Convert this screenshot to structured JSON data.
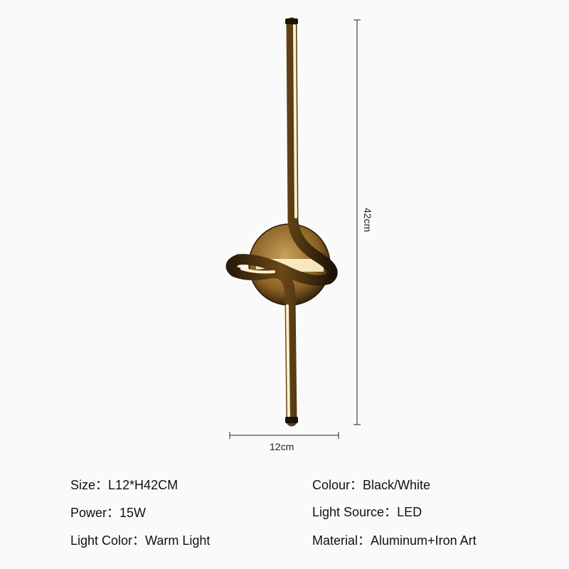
{
  "dimensions": {
    "height_label": "42cm",
    "width_label": "12cm"
  },
  "specs": [
    {
      "label": "Size：",
      "value": "L12*H42CM"
    },
    {
      "label": "Colour：",
      "value": "Black/White"
    },
    {
      "label": "Power：",
      "value": "15W"
    },
    {
      "label": "Light Source：",
      "value": "LED"
    },
    {
      "label": "Light Color：",
      "value": "Warm Light"
    },
    {
      "label": "Material：",
      "value": "Aluminum+Iron Art"
    }
  ],
  "colors": {
    "background": "#fafafa",
    "lamp_bronze": "#7a5418",
    "lamp_glow": "#fff6dc",
    "lamp_dark": "#2a1c0a"
  }
}
